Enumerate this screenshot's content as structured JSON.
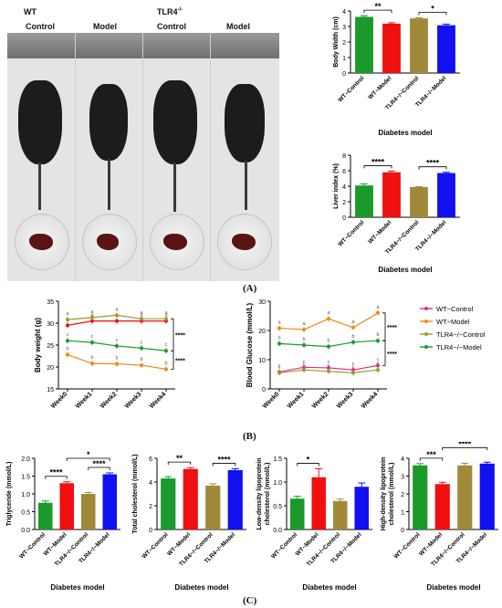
{
  "photo": {
    "group_wt": "WT",
    "group_tlr4": "TLR4",
    "group_tlr4_sup": "-/-",
    "col_labels": [
      "Control",
      "Model",
      "Control",
      "Model"
    ]
  },
  "panel_labels": [
    "(A)",
    "(B)",
    "(C)"
  ],
  "colors": {
    "wt_control": "#1a9a2a",
    "wt_model": "#f01010",
    "tlr4_control": "#a08a3a",
    "tlr4_model": "#1010f0"
  },
  "chart_data": [
    {
      "id": "body_width",
      "type": "bar",
      "categories": [
        "WT−Control",
        "WT−Model",
        "TLR4−/−Control",
        "TLR4−/−Model"
      ],
      "values": [
        3.62,
        3.18,
        3.52,
        3.08
      ],
      "errors": [
        0.08,
        0.06,
        0.04,
        0.07
      ],
      "xlabel": "Diabetes model",
      "ylabel": "Body Width (cm)",
      "ylim": [
        0,
        4
      ],
      "yticks": [
        "0",
        "1",
        "2",
        "3",
        "4"
      ],
      "significance": [
        {
          "from": 0,
          "to": 1,
          "label": "**"
        },
        {
          "from": 2,
          "to": 3,
          "label": "*"
        }
      ]
    },
    {
      "id": "liver_index",
      "type": "bar",
      "categories": [
        "WT−Control",
        "WT−Model",
        "TLR4−/−Control",
        "TLR4−/−Model"
      ],
      "values": [
        4.1,
        5.8,
        3.9,
        5.7
      ],
      "errors": [
        0.2,
        0.15,
        0.05,
        0.1
      ],
      "xlabel": "Diabetes model",
      "ylabel": "Liver index (%)",
      "ylim": [
        0,
        8
      ],
      "yticks": [
        "0",
        "2",
        "4",
        "6",
        "8"
      ],
      "significance": [
        {
          "from": 0,
          "to": 1,
          "label": "****"
        },
        {
          "from": 2,
          "to": 3,
          "label": "****"
        }
      ]
    },
    {
      "id": "body_weight",
      "type": "line",
      "x": [
        "Week0",
        "Week1",
        "Week2",
        "Week3",
        "Week4"
      ],
      "ylabel": "Body  weight (g)",
      "ylim": [
        15,
        35
      ],
      "yticks": [
        "15",
        "20",
        "25",
        "30",
        "35"
      ],
      "series": [
        {
          "name": "WT−Control",
          "values": [
            29.5,
            30.5,
            30.5,
            30.5,
            30.5
          ],
          "letters": [
            "a",
            "a",
            "a",
            "a",
            "a"
          ]
        },
        {
          "name": "WT−Model",
          "values": [
            22.8,
            20.8,
            20.7,
            20.4,
            19.5
          ],
          "letters": [
            "b",
            "b",
            "b",
            "b",
            "b"
          ]
        },
        {
          "name": "TLR4−/−Control",
          "values": [
            30.8,
            31.3,
            31.8,
            31.0,
            31.0
          ],
          "letters": [
            "a",
            "a",
            "a",
            "a",
            "a"
          ]
        },
        {
          "name": "TLR4−/−Model",
          "values": [
            26.0,
            25.6,
            24.8,
            24.3,
            23.7
          ],
          "letters": [
            "c",
            "c",
            "c",
            "c",
            "c"
          ]
        }
      ],
      "significance": [
        "****",
        "****"
      ]
    },
    {
      "id": "blood_glucose",
      "type": "line",
      "x": [
        "Week0",
        "Week1",
        "Week2",
        "Week3",
        "Week4"
      ],
      "ylabel": "Blood Glucose (mmol/L)",
      "ylim": [
        0,
        30
      ],
      "yticks": [
        "0",
        "10",
        "20",
        "30"
      ],
      "series": [
        {
          "name": "WT−Control",
          "values": [
            5.8,
            7.4,
            7.2,
            6.5,
            8.0
          ],
          "letters": [
            "c",
            "c",
            "c",
            "c",
            "c"
          ]
        },
        {
          "name": "WT−Model",
          "values": [
            20.8,
            20.3,
            24.0,
            21.0,
            26.0
          ],
          "letters": [
            "a",
            "a",
            "a",
            "a",
            "a"
          ]
        },
        {
          "name": "TLR4−/−Control",
          "values": [
            5.5,
            6.5,
            6.0,
            5.5,
            6.5
          ],
          "letters": [
            "c",
            "c",
            "c",
            "c",
            "c"
          ]
        },
        {
          "name": "TLR4−/−Model",
          "values": [
            15.5,
            15.0,
            14.5,
            16.0,
            16.5
          ],
          "letters": [
            "b",
            "b",
            "b",
            "b",
            "b"
          ]
        }
      ],
      "significance": [
        "****",
        "****"
      ]
    },
    {
      "id": "triglyceride",
      "type": "bar",
      "categories": [
        "WT−Control",
        "WT−Model",
        "TLR4−/−Control",
        "TLR4−/−Model"
      ],
      "values": [
        0.75,
        1.3,
        1.0,
        1.55
      ],
      "errors": [
        0.05,
        0.04,
        0.04,
        0.04
      ],
      "xlabel": "Diabetes model",
      "ylabel": "Triglyceride (mmol/L)",
      "ylim": [
        0,
        2.0
      ],
      "yticks": [
        "0.0",
        "0.5",
        "1.0",
        "1.5",
        "2.0"
      ],
      "significance": [
        {
          "from": 0,
          "to": 1,
          "label": "****"
        },
        {
          "from": 2,
          "to": 3,
          "label": "****"
        },
        {
          "from": 1,
          "to": 3,
          "label": "*"
        }
      ]
    },
    {
      "id": "total_cholesterol",
      "type": "bar",
      "categories": [
        "WT−Control",
        "WT−Model",
        "TLR4−/−Control",
        "TLR4−/−Model"
      ],
      "values": [
        4.3,
        5.1,
        3.7,
        5.0
      ],
      "errors": [
        0.15,
        0.12,
        0.15,
        0.12
      ],
      "xlabel": "Diabetes model",
      "ylabel": "Total cholesterol (mmol/L)",
      "ylim": [
        0,
        6
      ],
      "yticks": [
        "0",
        "2",
        "4",
        "6"
      ],
      "significance": [
        {
          "from": 0,
          "to": 1,
          "label": "**"
        },
        {
          "from": 2,
          "to": 3,
          "label": "****"
        }
      ]
    },
    {
      "id": "ldl",
      "type": "bar",
      "categories": [
        "WT−Control",
        "WT−Model",
        "TLR4−/−Control",
        "TLR4−/−Model"
      ],
      "values": [
        0.65,
        1.1,
        0.6,
        0.9
      ],
      "errors": [
        0.05,
        0.18,
        0.04,
        0.08
      ],
      "xlabel": "Diabetes model",
      "ylabel": "Low-density lipoprotein\ncholesterol (mmol/L)",
      "ylim": [
        0,
        1.5
      ],
      "yticks": [
        "0.0",
        "0.5",
        "1.0",
        "1.5"
      ],
      "significance": [
        {
          "from": 0,
          "to": 1,
          "label": "*"
        }
      ]
    },
    {
      "id": "hdl",
      "type": "bar",
      "categories": [
        "WT−Control",
        "WT−Model",
        "TLR4−/−Control",
        "TLR4−/−Model"
      ],
      "values": [
        3.6,
        2.55,
        3.6,
        3.7
      ],
      "errors": [
        0.1,
        0.1,
        0.12,
        0.08
      ],
      "xlabel": "Diabetes model",
      "ylabel": "High-density lipoprotein\ncholesterol (mmol/L)",
      "ylim": [
        0,
        4
      ],
      "yticks": [
        "0",
        "1",
        "2",
        "3",
        "4"
      ],
      "significance": [
        {
          "from": 0,
          "to": 1,
          "label": "***"
        },
        {
          "from": 1,
          "to": 3,
          "label": "****"
        }
      ]
    }
  ]
}
